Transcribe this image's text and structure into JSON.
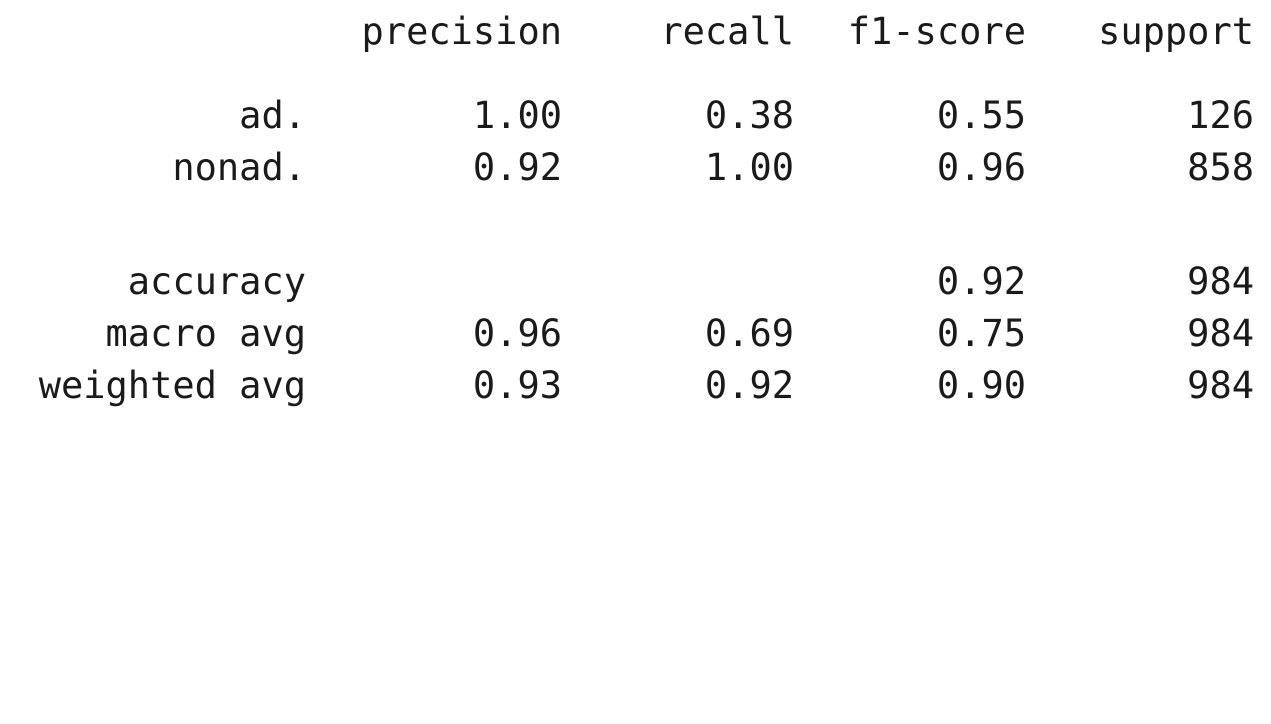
{
  "report": {
    "headers": [
      "precision",
      "recall",
      "f1-score",
      "support"
    ],
    "rows": [
      {
        "label": "ad.",
        "precision": "1.00",
        "recall": "0.38",
        "f1": "0.55",
        "support": "126"
      },
      {
        "label": "nonad.",
        "precision": "0.92",
        "recall": "1.00",
        "f1": "0.96",
        "support": "858"
      }
    ],
    "summary": [
      {
        "label": "accuracy",
        "precision": "",
        "recall": "",
        "f1": "0.92",
        "support": "984"
      },
      {
        "label": "macro avg",
        "precision": "0.96",
        "recall": "0.69",
        "f1": "0.75",
        "support": "984"
      },
      {
        "label": "weighted avg",
        "precision": "0.93",
        "recall": "0.92",
        "f1": "0.90",
        "support": "984"
      }
    ]
  }
}
